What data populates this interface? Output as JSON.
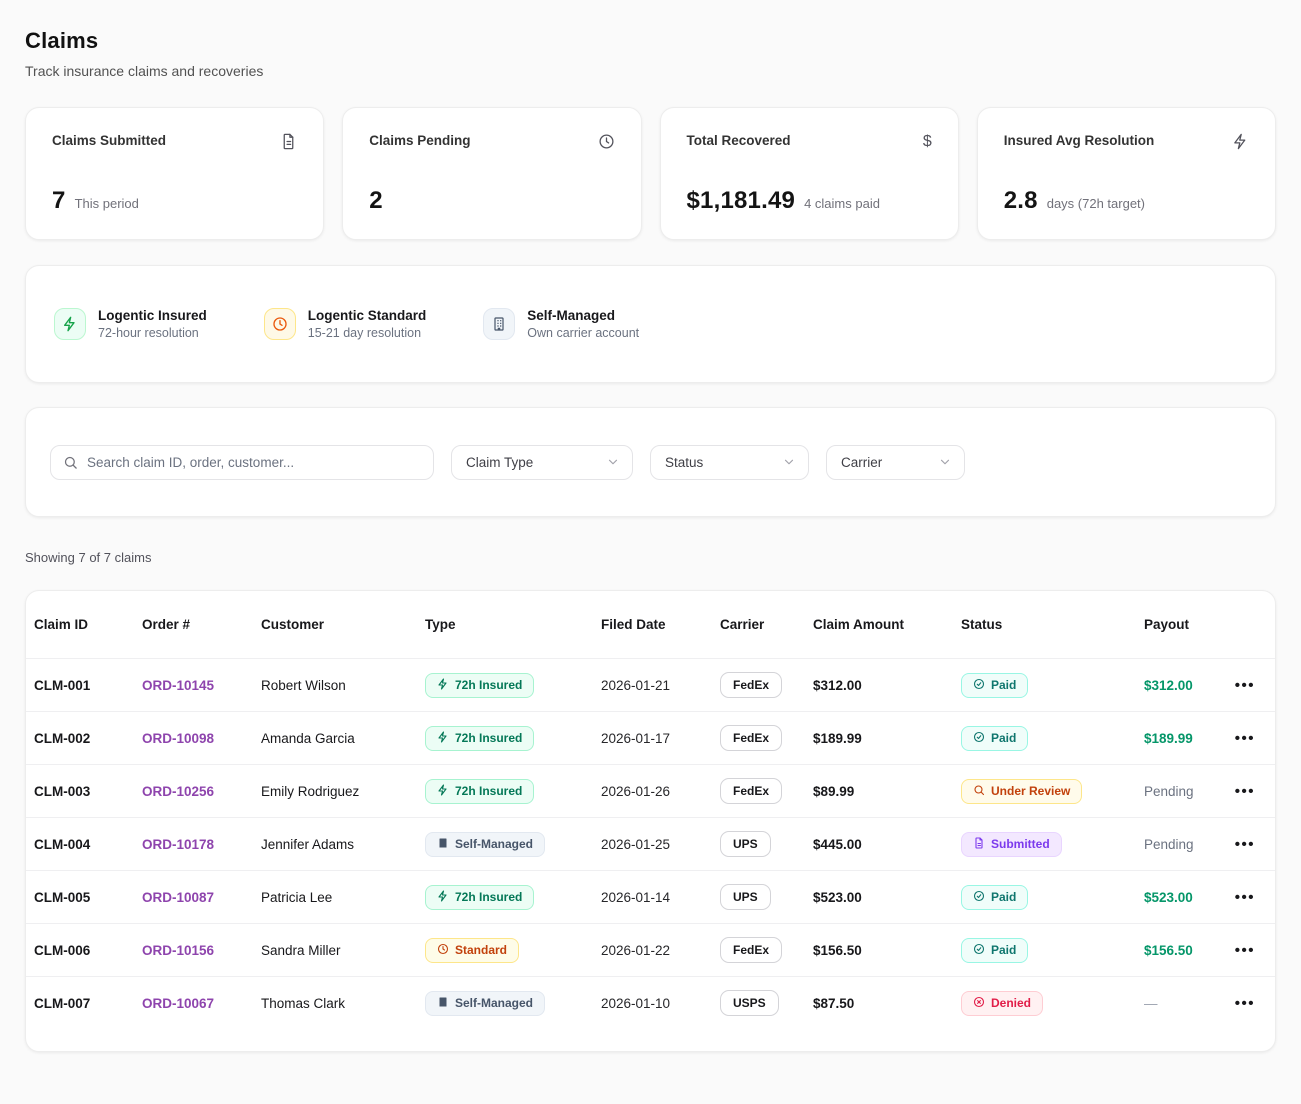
{
  "page": {
    "title": "Claims",
    "subtitle": "Track insurance claims and recoveries",
    "showing_text": "Showing 7 of 7 claims"
  },
  "stats": [
    {
      "label": "Claims Submitted",
      "icon": "file-text-icon",
      "value": "7",
      "caption": "This period"
    },
    {
      "label": "Claims Pending",
      "icon": "clock-icon",
      "value": "2",
      "caption": ""
    },
    {
      "label": "Total Recovered",
      "icon": "dollar-icon",
      "value": "$1,181.49",
      "caption": "4 claims paid"
    },
    {
      "label": "Insured Avg Resolution",
      "icon": "bolt-icon",
      "value": "2.8",
      "caption": "days (72h target)"
    }
  ],
  "legend": [
    {
      "icon": "bolt-icon",
      "title": "Logentic Insured",
      "subtitle": "72-hour resolution",
      "color": "#16a34a"
    },
    {
      "icon": "clock-icon",
      "title": "Logentic Standard",
      "subtitle": "15-21 day resolution",
      "color": "#ea580c"
    },
    {
      "icon": "building-icon",
      "title": "Self-Managed",
      "subtitle": "Own carrier account",
      "color": "#475569"
    }
  ],
  "filters": {
    "search_placeholder": "Search claim ID, order, customer...",
    "dropdowns": [
      {
        "label": "Claim Type"
      },
      {
        "label": "Status"
      },
      {
        "label": "Carrier"
      }
    ]
  },
  "table": {
    "columns": [
      "Claim ID",
      "Order #",
      "Customer",
      "Type",
      "Filed Date",
      "Carrier",
      "Claim Amount",
      "Status",
      "Payout"
    ],
    "rows": [
      {
        "claim_id": "CLM-001",
        "order": "ORD-10145",
        "customer": "Robert Wilson",
        "type_label": "72h Insured",
        "type_kind": "insured",
        "filed_date": "2026-01-21",
        "carrier": "FedEx",
        "amount": "$312.00",
        "status_label": "Paid",
        "status_kind": "paid",
        "payout": "$312.00",
        "payout_kind": "paid"
      },
      {
        "claim_id": "CLM-002",
        "order": "ORD-10098",
        "customer": "Amanda Garcia",
        "type_label": "72h Insured",
        "type_kind": "insured",
        "filed_date": "2026-01-17",
        "carrier": "FedEx",
        "amount": "$189.99",
        "status_label": "Paid",
        "status_kind": "paid",
        "payout": "$189.99",
        "payout_kind": "paid"
      },
      {
        "claim_id": "CLM-003",
        "order": "ORD-10256",
        "customer": "Emily Rodriguez",
        "type_label": "72h Insured",
        "type_kind": "insured",
        "filed_date": "2026-01-26",
        "carrier": "FedEx",
        "amount": "$89.99",
        "status_label": "Under Review",
        "status_kind": "review",
        "payout": "Pending",
        "payout_kind": "pending"
      },
      {
        "claim_id": "CLM-004",
        "order": "ORD-10178",
        "customer": "Jennifer Adams",
        "type_label": "Self-Managed",
        "type_kind": "self",
        "filed_date": "2026-01-25",
        "carrier": "UPS",
        "amount": "$445.00",
        "status_label": "Submitted",
        "status_kind": "submitted",
        "payout": "Pending",
        "payout_kind": "pending"
      },
      {
        "claim_id": "CLM-005",
        "order": "ORD-10087",
        "customer": "Patricia Lee",
        "type_label": "72h Insured",
        "type_kind": "insured",
        "filed_date": "2026-01-14",
        "carrier": "UPS",
        "amount": "$523.00",
        "status_label": "Paid",
        "status_kind": "paid",
        "payout": "$523.00",
        "payout_kind": "paid"
      },
      {
        "claim_id": "CLM-006",
        "order": "ORD-10156",
        "customer": "Sandra Miller",
        "type_label": "Standard",
        "type_kind": "standard",
        "filed_date": "2026-01-22",
        "carrier": "FedEx",
        "amount": "$156.50",
        "status_label": "Paid",
        "status_kind": "paid",
        "payout": "$156.50",
        "payout_kind": "paid"
      },
      {
        "claim_id": "CLM-007",
        "order": "ORD-10067",
        "customer": "Thomas Clark",
        "type_label": "Self-Managed",
        "type_kind": "self",
        "filed_date": "2026-01-10",
        "carrier": "USPS",
        "amount": "$87.50",
        "status_label": "Denied",
        "status_kind": "denied",
        "payout": "—",
        "payout_kind": "none"
      }
    ]
  },
  "colors": {
    "order_link_purple": "#8e44ad",
    "payout_paid_green": "#059669",
    "type_insured_green": "#047857",
    "type_standard_orange": "#c2410c",
    "type_self_slate": "#475569",
    "status_paid_teal": "#0f766e",
    "status_review_orange": "#c2410c",
    "status_submitted_purple": "#7c3aed",
    "status_denied_red": "#e11d48"
  }
}
